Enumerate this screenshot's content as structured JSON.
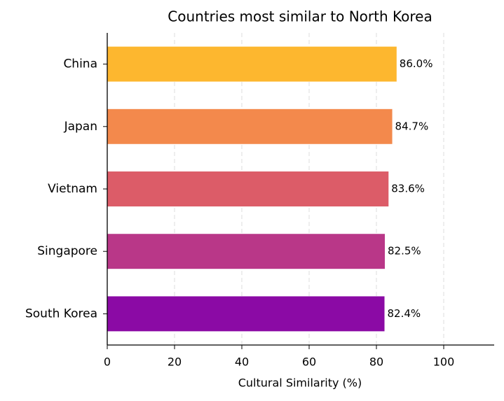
{
  "chart_data": {
    "type": "barh",
    "title": "Countries most similar to North Korea",
    "xlabel": "Cultural Similarity (%)",
    "categories": [
      "China",
      "Japan",
      "Vietnam",
      "Singapore",
      "South Korea"
    ],
    "values": [
      86.0,
      84.7,
      83.6,
      82.5,
      82.4
    ],
    "value_labels": [
      "86.0%",
      "84.7%",
      "83.6%",
      "82.5%",
      "82.4%"
    ],
    "colors": [
      "#fdb72f",
      "#f3894c",
      "#dc5c68",
      "#b93788",
      "#8b0aa5"
    ],
    "xlim": [
      0,
      115
    ],
    "xticks": [
      0,
      20,
      40,
      60,
      80,
      100
    ],
    "grid": true
  }
}
